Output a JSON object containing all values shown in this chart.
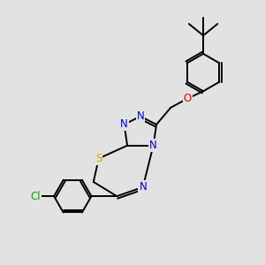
{
  "bg_color": "#e2e2e2",
  "atom_colors": {
    "N": "#0000cc",
    "S": "#ccaa00",
    "O": "#dd0000",
    "Cl": "#00aa00"
  },
  "bond_color": "#000000",
  "bond_width": 1.4,
  "font_size_atoms": 8.5,
  "fig_w": 3.0,
  "fig_h": 3.0,
  "dpi": 100
}
